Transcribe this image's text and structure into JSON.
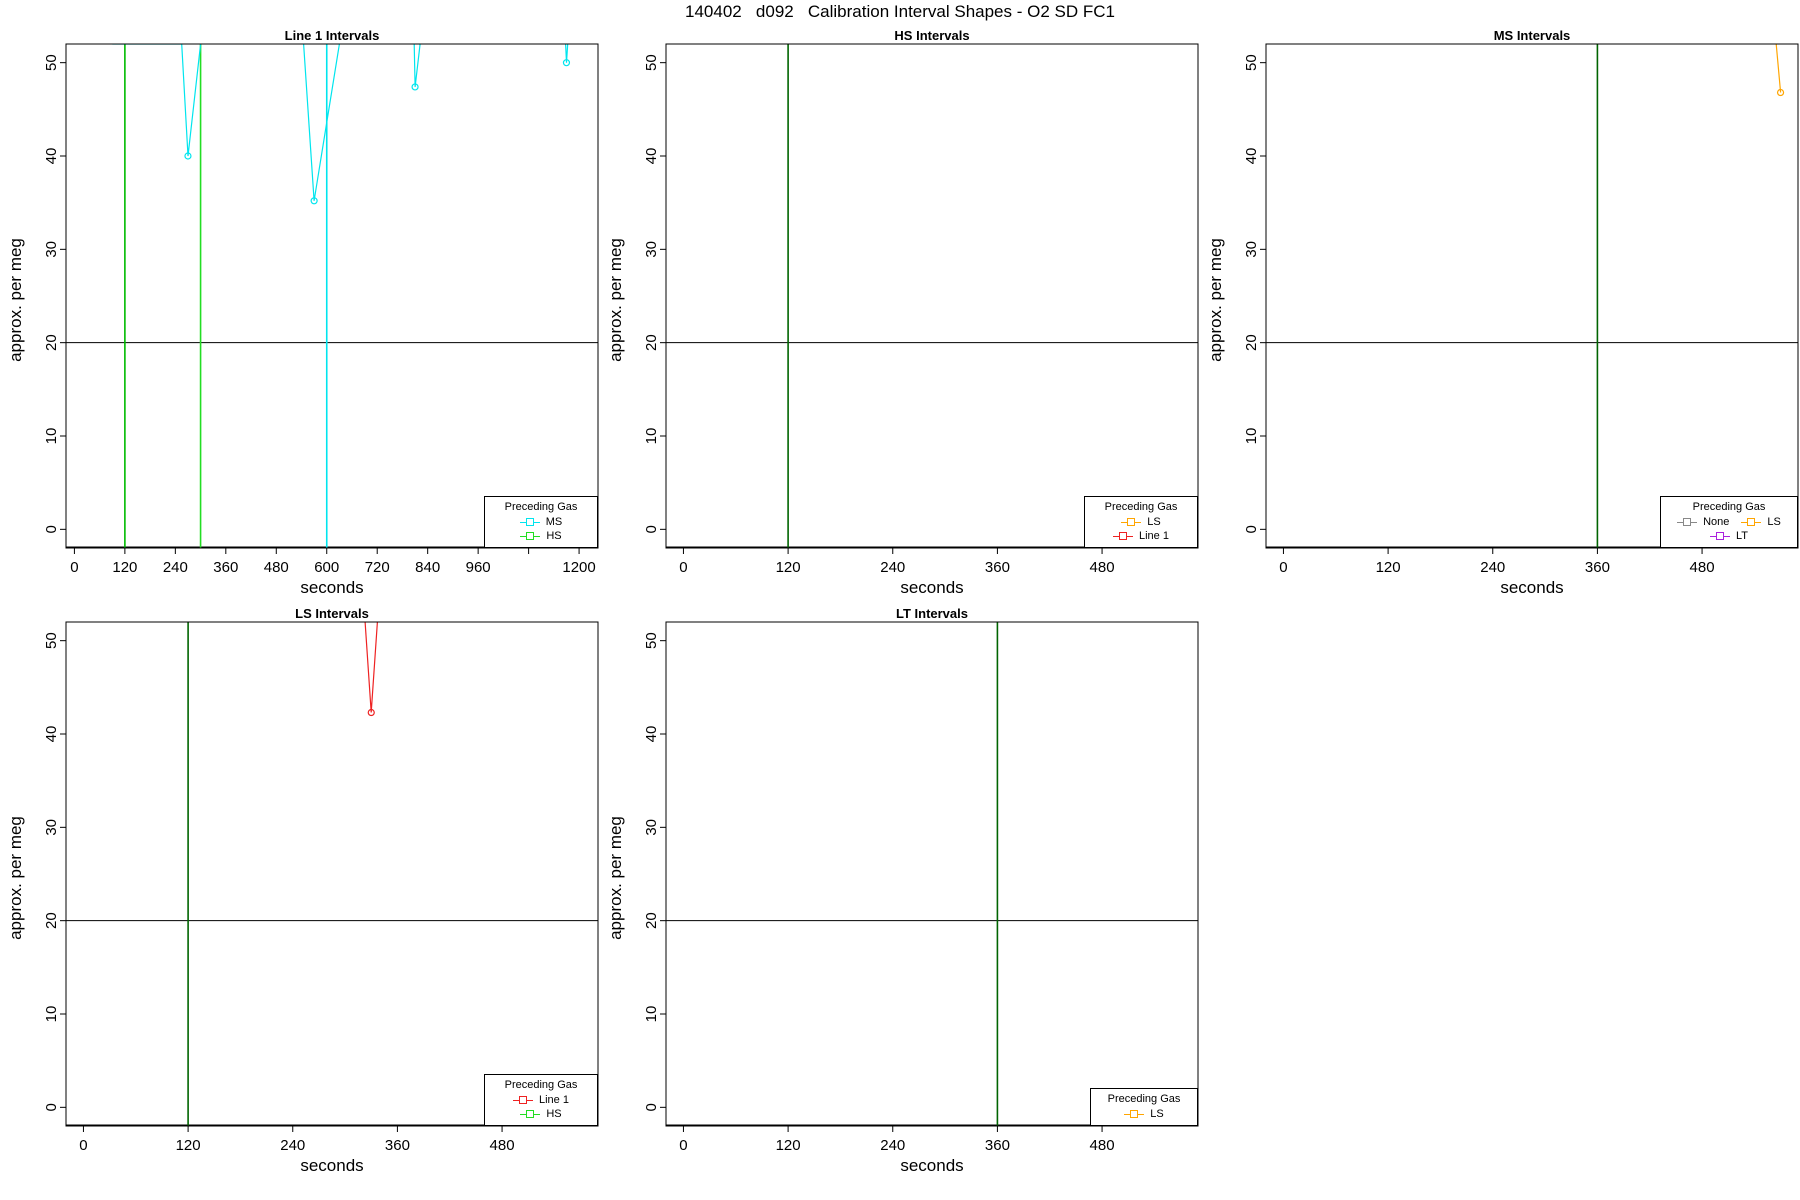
{
  "title": "140402   d092   Calibration Interval Shapes - O2 SD FC1",
  "chart_data": [
    {
      "type": "line",
      "title": "Line 1 Intervals",
      "xlabel": "seconds",
      "ylabel": "approx. per meg",
      "xlim": [
        -20,
        1245
      ],
      "ylim": [
        -2,
        52
      ],
      "xticks": [
        0,
        120,
        240,
        360,
        480,
        600,
        720,
        840,
        960,
        1080,
        1200
      ],
      "xtick_labels": [
        "0",
        "120",
        "240",
        "360",
        "480",
        "600",
        "720",
        "840",
        "960",
        "",
        "1200"
      ],
      "yticks": [
        0,
        10,
        20,
        30,
        40,
        50
      ],
      "hline": 20,
      "vlines": [
        {
          "x": 120,
          "color": "#00bb00"
        },
        {
          "x": 300,
          "color": "#22dd22"
        },
        {
          "x": 600,
          "color": "#00e5ee"
        }
      ],
      "series": [
        {
          "name": "MS",
          "color": "#00e5ee",
          "points": [
            [
              90,
              52
            ],
            [
              255,
              52
            ],
            [
              270,
              40
            ],
            [
              300,
              52
            ]
          ]
        },
        {
          "name": "MS",
          "color": "#00e5ee",
          "points": [
            [
              545,
              52
            ],
            [
              570,
              35.2
            ],
            [
              630,
              52
            ]
          ]
        },
        {
          "name": "MS",
          "color": "#00e5ee",
          "points": [
            [
              808,
              52
            ],
            [
              810,
              47.4
            ],
            [
              822,
              52
            ]
          ]
        },
        {
          "name": "MS",
          "color": "#00e5ee",
          "points": [
            [
              1168,
              52
            ],
            [
              1170,
              50
            ],
            [
              1173,
              52
            ]
          ]
        }
      ],
      "legend": {
        "title": "Preceding Gas",
        "position": "bottom-right",
        "entries": [
          {
            "label": "MS",
            "color": "#00e5ee"
          },
          {
            "label": "HS",
            "color": "#22dd22"
          }
        ]
      }
    },
    {
      "type": "line",
      "title": "HS Intervals",
      "xlabel": "seconds",
      "ylabel": "approx. per meg",
      "xlim": [
        -20,
        590
      ],
      "ylim": [
        -2,
        52
      ],
      "xticks": [
        0,
        120,
        240,
        360,
        480
      ],
      "xtick_labels": [
        "0",
        "120",
        "240",
        "360",
        "480"
      ],
      "yticks": [
        0,
        10,
        20,
        30,
        40,
        50
      ],
      "hline": 20,
      "vlines": [
        {
          "x": 120,
          "color": "#006400"
        }
      ],
      "series": [],
      "legend": {
        "title": "Preceding Gas",
        "position": "bottom-right",
        "entries": [
          {
            "label": "LS",
            "color": "#ffa500"
          },
          {
            "label": "Line 1",
            "color": "#ee2222"
          }
        ]
      }
    },
    {
      "type": "line",
      "title": "MS Intervals",
      "xlabel": "seconds",
      "ylabel": "approx. per meg",
      "xlim": [
        -20,
        590
      ],
      "ylim": [
        -2,
        52
      ],
      "xticks": [
        0,
        120,
        240,
        360,
        480
      ],
      "xtick_labels": [
        "0",
        "120",
        "240",
        "360",
        "480"
      ],
      "yticks": [
        0,
        10,
        20,
        30,
        40,
        50
      ],
      "hline": 20,
      "vlines": [
        {
          "x": 360,
          "color": "#006400"
        }
      ],
      "series": [
        {
          "name": "LS",
          "color": "#ffa500",
          "points": [
            [
              565,
              52
            ],
            [
              570,
              46.8
            ]
          ]
        }
      ],
      "legend": {
        "title": "Preceding Gas",
        "position": "bottom-right",
        "entries": [
          {
            "label": "None",
            "color": "#888888"
          },
          {
            "label": "LS",
            "color": "#ffa500"
          },
          {
            "label": "LT",
            "color": "#aa22dd"
          }
        ]
      }
    },
    {
      "type": "line",
      "title": "LS Intervals",
      "xlabel": "seconds",
      "ylabel": "approx. per meg",
      "xlim": [
        -20,
        590
      ],
      "ylim": [
        -2,
        52
      ],
      "xticks": [
        0,
        120,
        240,
        360,
        480
      ],
      "xtick_labels": [
        "0",
        "120",
        "240",
        "360",
        "480"
      ],
      "yticks": [
        0,
        10,
        20,
        30,
        40,
        50
      ],
      "hline": 20,
      "vlines": [
        {
          "x": 120,
          "color": "#006400"
        }
      ],
      "series": [
        {
          "name": "Line 1",
          "color": "#ee2222",
          "points": [
            [
              323,
              52
            ],
            [
              330,
              42.3
            ],
            [
              337,
              52
            ]
          ]
        }
      ],
      "legend": {
        "title": "Preceding Gas",
        "position": "bottom-right",
        "entries": [
          {
            "label": "Line 1",
            "color": "#ee2222"
          },
          {
            "label": "HS",
            "color": "#22dd22"
          }
        ]
      }
    },
    {
      "type": "line",
      "title": "LT Intervals",
      "xlabel": "seconds",
      "ylabel": "approx. per meg",
      "xlim": [
        -20,
        590
      ],
      "ylim": [
        -2,
        52
      ],
      "xticks": [
        0,
        120,
        240,
        360,
        480
      ],
      "xtick_labels": [
        "0",
        "120",
        "240",
        "360",
        "480"
      ],
      "yticks": [
        0,
        10,
        20,
        30,
        40,
        50
      ],
      "hline": 20,
      "vlines": [
        {
          "x": 360,
          "color": "#006400"
        }
      ],
      "series": [],
      "legend": {
        "title": "Preceding Gas",
        "position": "bottom-right",
        "entries": [
          {
            "label": "LS",
            "color": "#ffa500"
          }
        ]
      }
    }
  ]
}
